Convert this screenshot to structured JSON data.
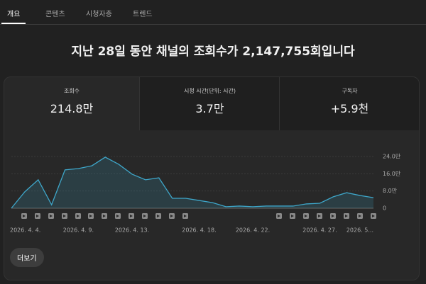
{
  "tabs": [
    "개요",
    "콘텐츠",
    "시청자층",
    "트렌드"
  ],
  "headline": "지난 28일 동안 채널의 조회수가 2,147,755회입니다",
  "metrics": [
    {
      "label": "조회수",
      "value": "214.8만"
    },
    {
      "label": "시청 시간(단위: 시간)",
      "value": "3.7만"
    },
    {
      "label": "구독자",
      "value": "+5.9천"
    }
  ],
  "more_button": "더보기",
  "chart_data": {
    "type": "line",
    "categories": [
      "2026. 4. 4.",
      null,
      null,
      null,
      null,
      "2026. 4. 9.",
      null,
      null,
      null,
      "2026. 4. 13.",
      null,
      null,
      null,
      null,
      "2026. 4. 18.",
      null,
      null,
      null,
      "2026. 4. 22.",
      null,
      null,
      null,
      null,
      "2026. 4. 27.",
      null,
      null,
      null,
      "2026. 5..."
    ],
    "values": [
      0,
      7.6,
      13.2,
      1.6,
      17.8,
      18.4,
      19.7,
      23.7,
      20.4,
      15.8,
      13.2,
      14.1,
      4.6,
      4.6,
      3.6,
      2.6,
      0.7,
      1.0,
      0.7,
      1.0,
      1.0,
      1.0,
      2.0,
      2.3,
      5.3,
      7.2,
      5.9,
      4.9
    ],
    "color": "#3ea6c9",
    "ylim": [
      0,
      24
    ],
    "yticks": [
      0,
      {
        "value": 8,
        "label": "8.0만"
      },
      {
        "value": 16,
        "label": "16.0만"
      },
      {
        "value": 24,
        "label": "24.0만"
      }
    ],
    "grid": true
  }
}
